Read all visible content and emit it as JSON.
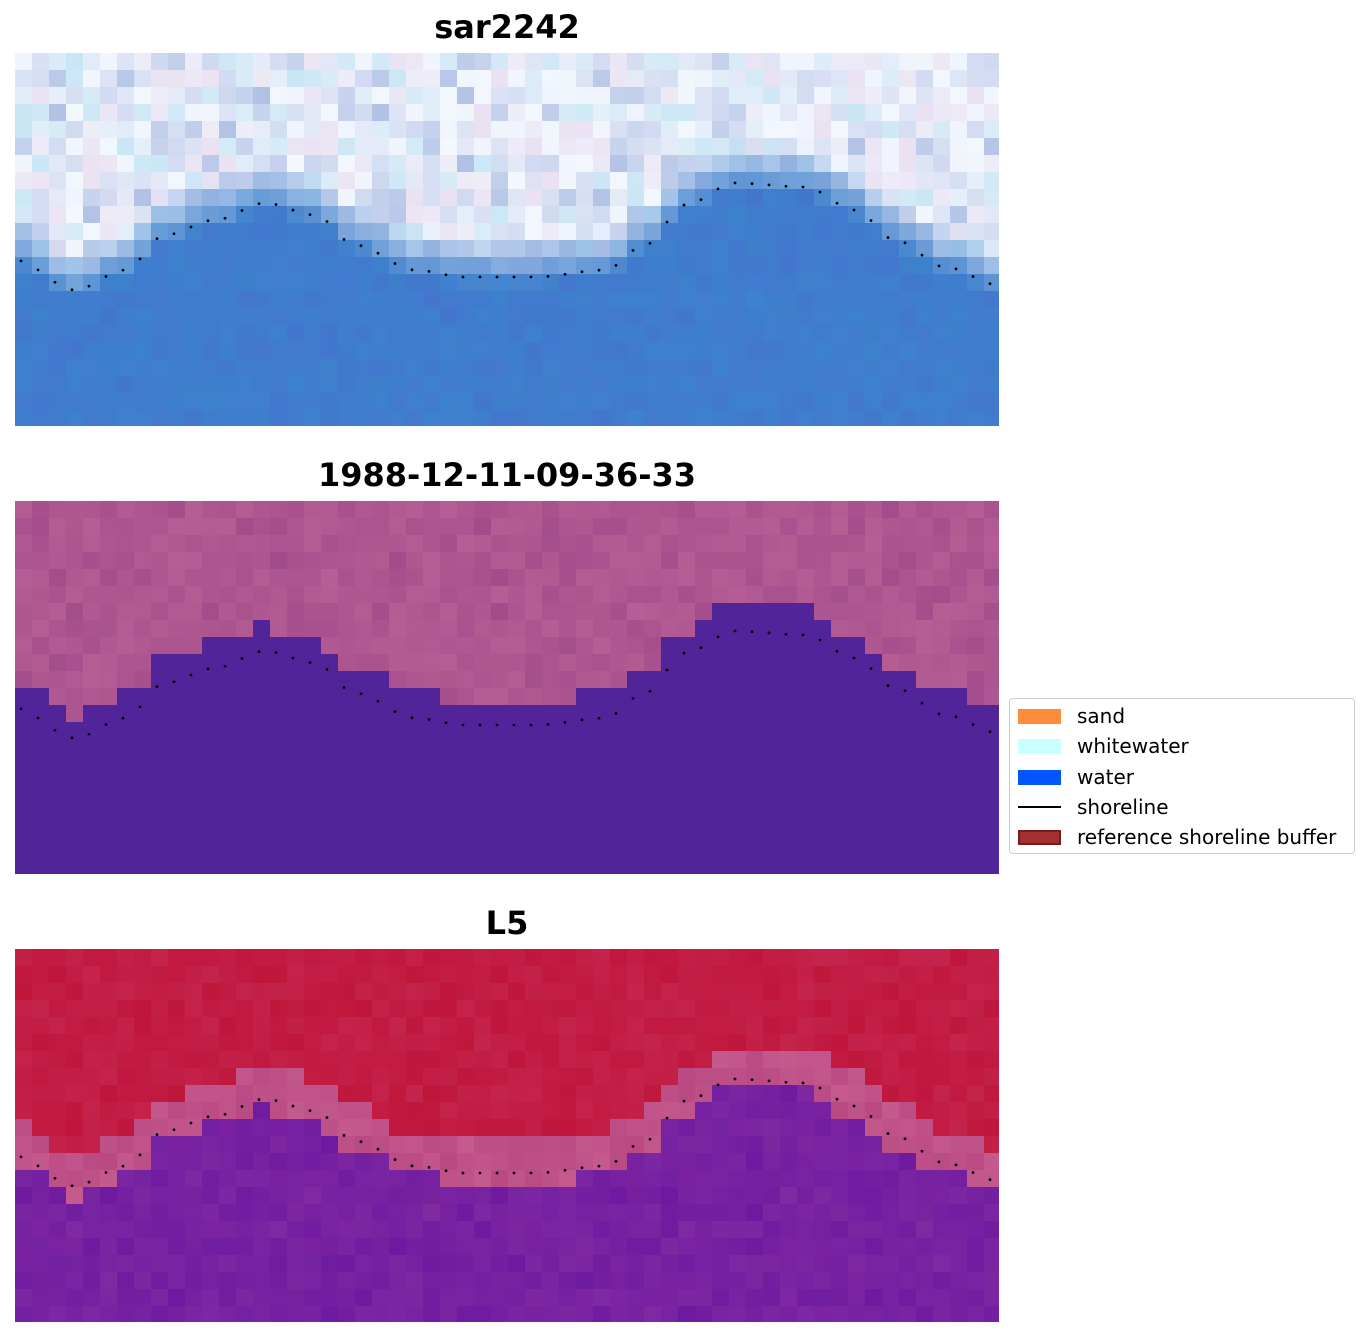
{
  "panels": [
    {
      "title": "sar2242",
      "style": "rgb"
    },
    {
      "title": "1988-12-11-09-36-33",
      "style": "class"
    },
    {
      "title": "L5",
      "style": "index"
    }
  ],
  "legend": {
    "items": [
      {
        "label": "sand",
        "kind": "patch",
        "color": "#ff8c3a"
      },
      {
        "label": "whitewater",
        "kind": "patch",
        "color": "#c8ffff"
      },
      {
        "label": "water",
        "kind": "patch",
        "color": "#0055ff"
      },
      {
        "label": "shoreline",
        "kind": "line",
        "color": "#000000"
      },
      {
        "label": "reference shoreline buffer",
        "kind": "patch",
        "color": "#a33030",
        "edge": "#7a1a1a"
      }
    ]
  },
  "colors": {
    "class_land": "#b25a92",
    "class_water": "#52249a",
    "index_land": "#c0163c",
    "index_water": "#7a22a0",
    "index_boundary": "#c45a8e",
    "rgb_water": "#3d7fcc",
    "rgb_land_light": "#eef2fa",
    "shoreline_dots": "#000000"
  }
}
